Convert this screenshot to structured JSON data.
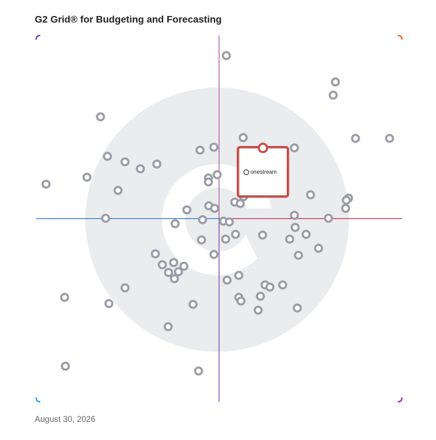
{
  "chart_data": {
    "type": "scatter",
    "title": "G2 Grid® for Budgeting and Forecasting",
    "date": "August 30, 2026",
    "xlim": [
      0,
      100
    ],
    "ylim": [
      0,
      100
    ],
    "dividers": {
      "x": 50,
      "y": 50
    },
    "color": "#9a9ba6",
    "x": [
      52.0,
      81.8,
      81.2,
      17.6,
      87.3,
      96.6,
      56.6,
      70.6,
      44.8,
      48.6,
      19.5,
      24.3,
      28.5,
      33.0,
      13.9,
      2.7,
      49.5,
      47.1,
      47.1,
      22.4,
      75.0,
      85.4,
      84.8,
      54.3,
      55.8,
      56.7,
      47.2,
      48.8,
      41.2,
      84.6,
      70.6,
      79.9,
      19.0,
      45.5,
      51.2,
      52.8,
      38.0,
      70.8,
      54.5,
      61.9,
      73.8,
      69.3,
      45.2,
      51.8,
      77.2,
      71.7,
      32.6,
      48.6,
      34.5,
      37.6,
      40.4,
      36.2,
      38.9,
      37.8,
      55.4,
      52.2,
      62.6,
      63.9,
      67.4,
      24.3,
      61.3,
      55.4,
      56.0,
      7.8,
      19.9,
      42.9,
      60.7,
      71.4,
      36.1,
      8.0,
      44.4
    ],
    "values": [
      94.5,
      87.3,
      83.7,
      77.8,
      71.9,
      71.9,
      72.1,
      69.3,
      68.7,
      69.5,
      67.0,
      65.5,
      63.6,
      64.9,
      61.3,
      59.4,
      62.0,
      61.1,
      60.0,
      57.7,
      56.5,
      55.6,
      55.0,
      54.5,
      54.1,
      56.0,
      53.5,
      52.8,
      52.4,
      52.8,
      50.9,
      50.1,
      50.1,
      49.7,
      49.3,
      49.1,
      48.6,
      47.6,
      45.7,
      45.5,
      45.7,
      44.4,
      44.2,
      44.4,
      41.9,
      40.0,
      40.4,
      40.2,
      37.4,
      38.0,
      37.0,
      35.3,
      35.5,
      33.6,
      34.5,
      33.2,
      31.9,
      31.3,
      31.9,
      31.1,
      28.8,
      28.5,
      27.5,
      28.5,
      26.8,
      26.6,
      25.0,
      25.6,
      20.5,
      9.7,
      8.4
    ],
    "highlight": {
      "label": "onestream",
      "x": 62.0,
      "y": 69.3,
      "color": "#c0504d"
    }
  }
}
